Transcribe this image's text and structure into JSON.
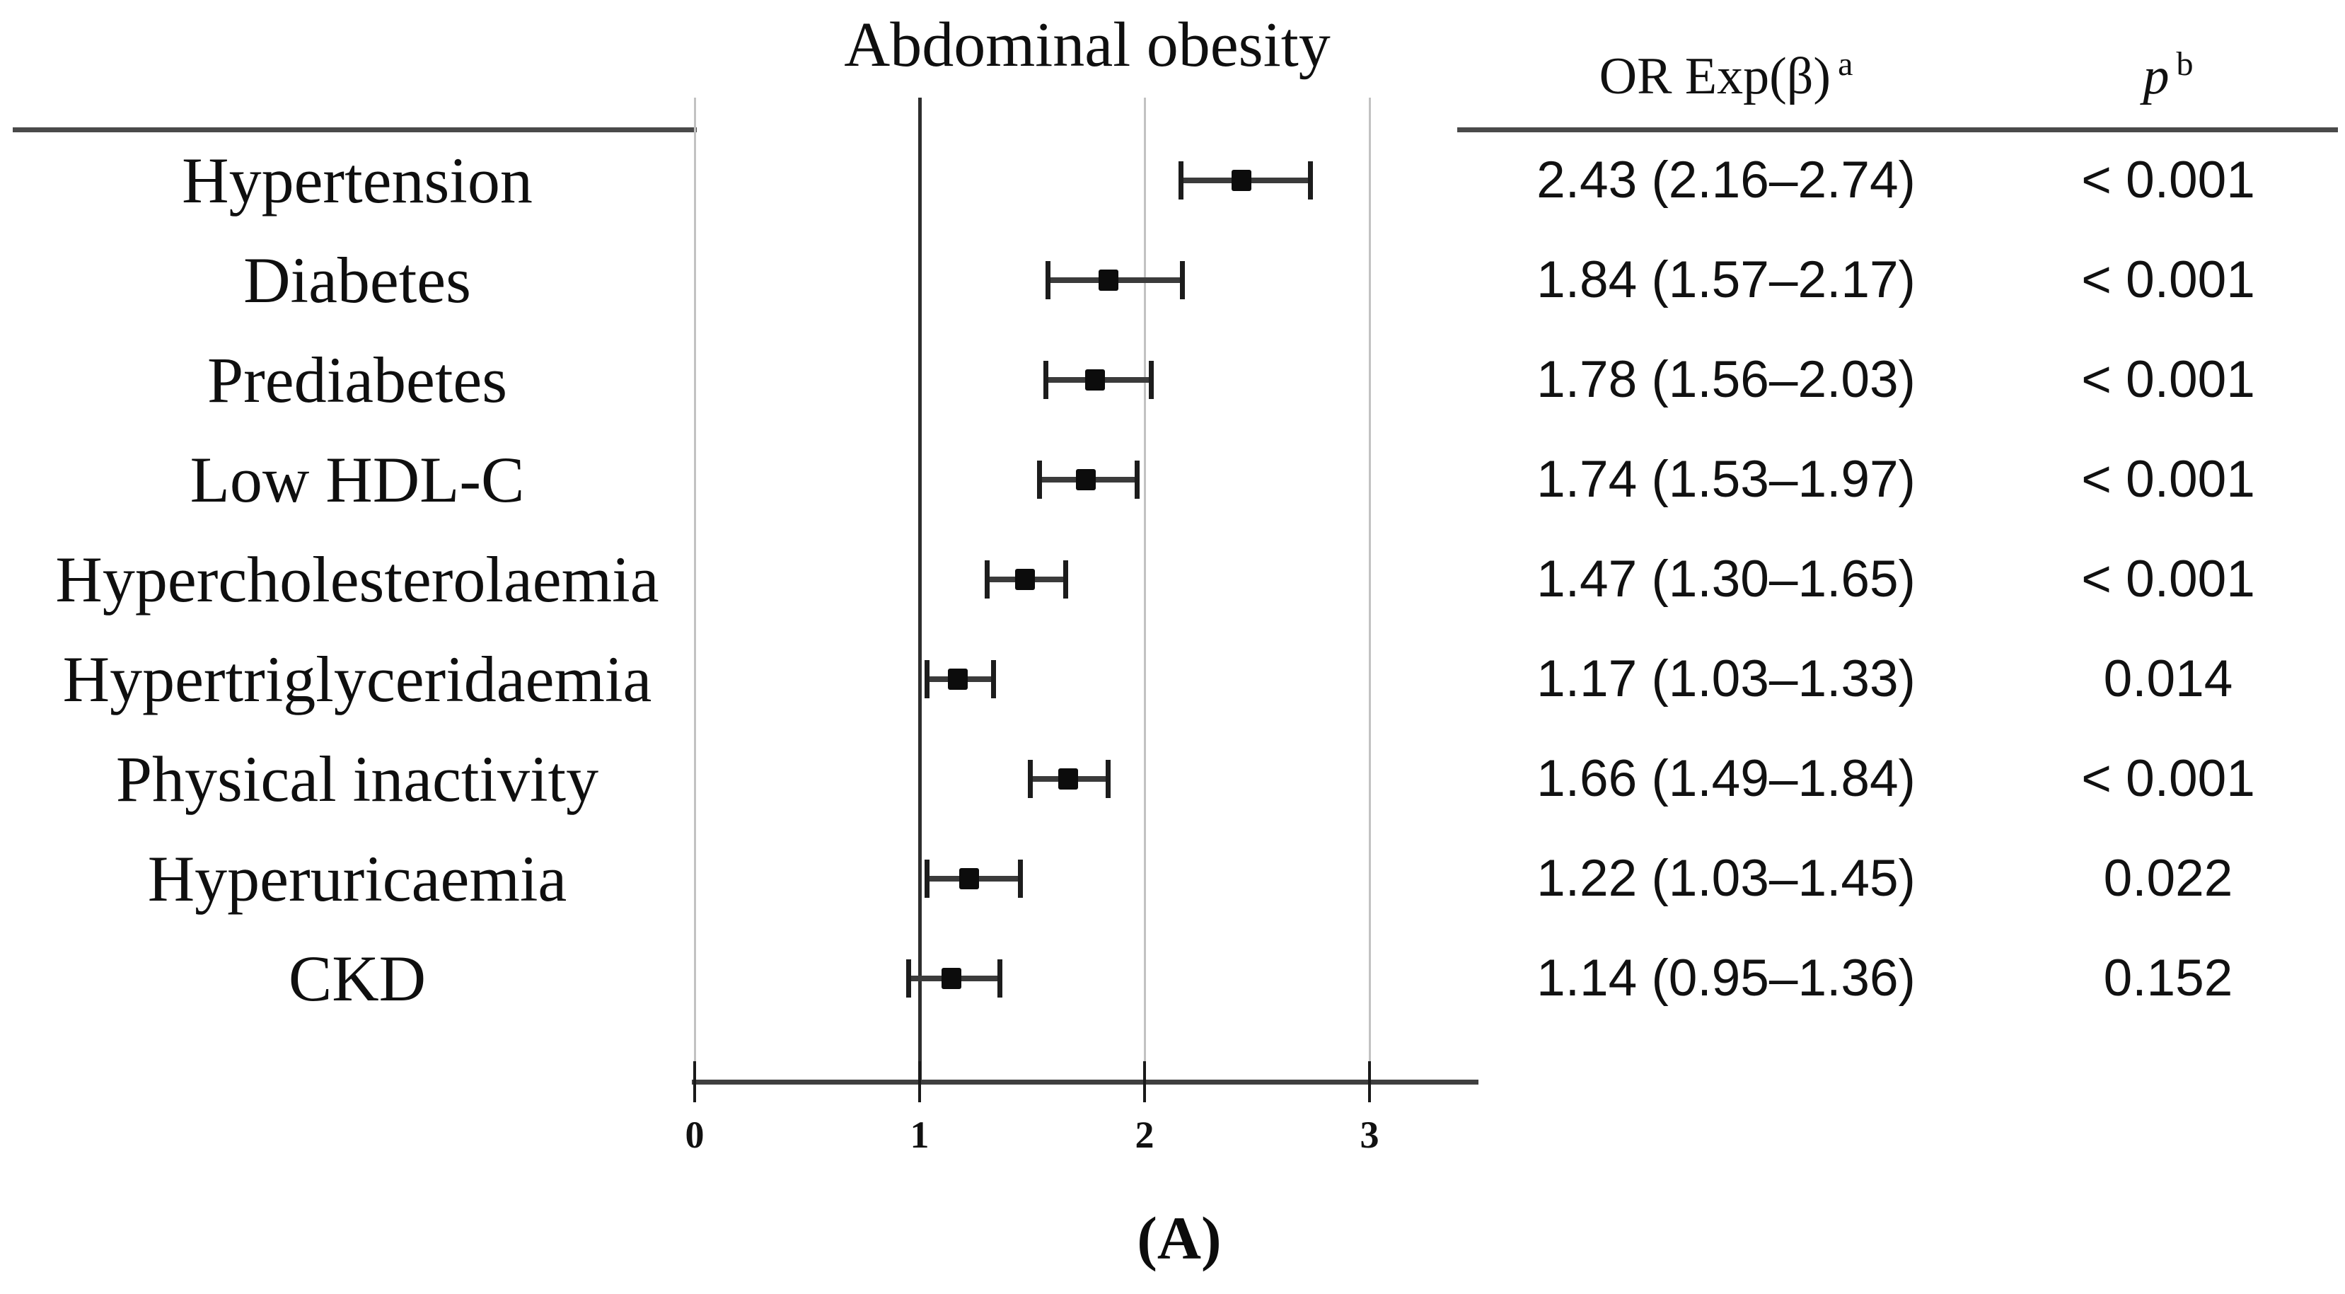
{
  "figure": {
    "title": "Abdominal obesity",
    "caption": "(A)"
  },
  "table": {
    "or_header": "OR Exp(β)",
    "or_header_sup": "a",
    "p_header": "p",
    "p_header_sup": "b"
  },
  "chart_data": {
    "type": "forest",
    "title": "Abdominal obesity",
    "xlabel": "",
    "xlim": [
      0,
      3.5
    ],
    "x_ticks": [
      0,
      1,
      2,
      3
    ],
    "reference_line_x": 1,
    "grid": "vertical-at-ticks",
    "columns": [
      "OR Exp(β) a",
      "p b"
    ],
    "points": [
      {
        "label": "Hypertension",
        "or": 2.43,
        "ci_low": 2.16,
        "ci_high": 2.74,
        "or_text": "2.43 (2.16–2.74)",
        "p_text": "< 0.001"
      },
      {
        "label": "Diabetes",
        "or": 1.84,
        "ci_low": 1.57,
        "ci_high": 2.17,
        "or_text": "1.84 (1.57–2.17)",
        "p_text": "< 0.001"
      },
      {
        "label": "Prediabetes",
        "or": 1.78,
        "ci_low": 1.56,
        "ci_high": 2.03,
        "or_text": "1.78 (1.56–2.03)",
        "p_text": "< 0.001"
      },
      {
        "label": "Low HDL-C",
        "or": 1.74,
        "ci_low": 1.53,
        "ci_high": 1.97,
        "or_text": "1.74 (1.53–1.97)",
        "p_text": "< 0.001"
      },
      {
        "label": "Hypercholesterolaemia",
        "or": 1.47,
        "ci_low": 1.3,
        "ci_high": 1.65,
        "or_text": "1.47 (1.30–1.65)",
        "p_text": "< 0.001"
      },
      {
        "label": "Hypertriglyceridaemia",
        "or": 1.17,
        "ci_low": 1.03,
        "ci_high": 1.33,
        "or_text": "1.17 (1.03–1.33)",
        "p_text": "0.014"
      },
      {
        "label": "Physical inactivity",
        "or": 1.66,
        "ci_low": 1.49,
        "ci_high": 1.84,
        "or_text": "1.66 (1.49–1.84)",
        "p_text": "< 0.001"
      },
      {
        "label": "Hyperuricaemia",
        "or": 1.22,
        "ci_low": 1.03,
        "ci_high": 1.45,
        "or_text": "1.22 (1.03–1.45)",
        "p_text": "0.022"
      },
      {
        "label": "CKD",
        "or": 1.14,
        "ci_low": 0.95,
        "ci_high": 1.36,
        "or_text": "1.14 (0.95–1.36)",
        "p_text": "0.152"
      }
    ],
    "colors": {
      "marker": "#0c0c0c",
      "ci_line": "#3b3b3b",
      "reference_line": "#2e2e2e",
      "gridline": "#c2c2c2",
      "rule": "#4a4a4a",
      "text": "#111111"
    }
  }
}
